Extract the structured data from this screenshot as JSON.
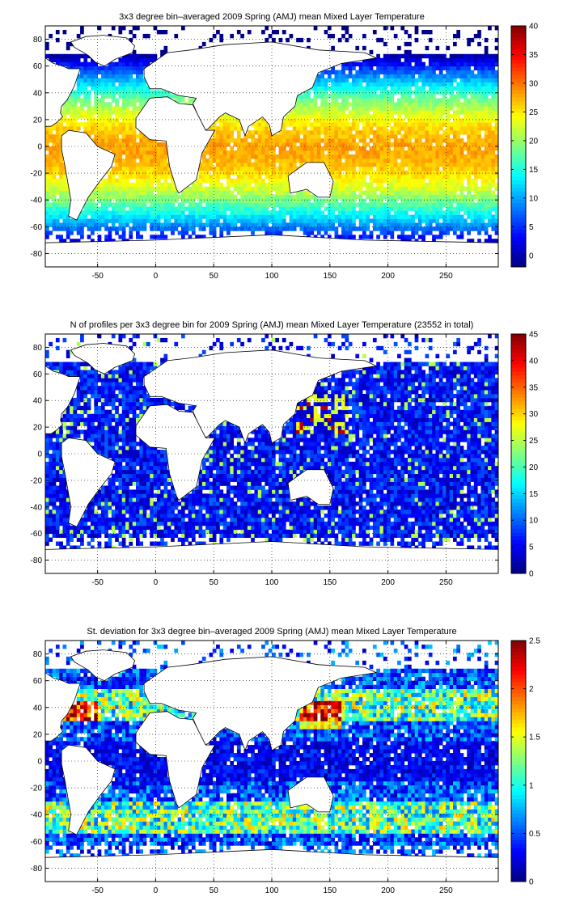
{
  "chart_data": [
    {
      "type": "heatmap",
      "title": "3x3 degree bin–averaged 2009 Spring (AMJ) mean Mixed Layer Temperature",
      "xlim": [
        -95,
        295
      ],
      "ylim": [
        -90,
        90
      ],
      "xticks": [
        -50,
        0,
        50,
        100,
        150,
        200,
        250
      ],
      "yticks": [
        -80,
        -60,
        -40,
        -20,
        0,
        20,
        40,
        60,
        80
      ],
      "clim": [
        -2,
        40
      ],
      "colorbar_ticks": [
        0,
        5,
        10,
        15,
        20,
        25,
        30,
        35,
        40
      ],
      "colormap": "jet",
      "grid": true,
      "field": "temperature",
      "bin_size_deg": 3
    },
    {
      "type": "heatmap",
      "title": "N of profiles per 3x3 degree bin for 2009 Spring (AMJ) mean Mixed Layer Temperature  (23552 in total)",
      "xlim": [
        -95,
        295
      ],
      "ylim": [
        -90,
        90
      ],
      "xticks": [
        -50,
        0,
        50,
        100,
        150,
        200,
        250
      ],
      "yticks": [
        -80,
        -60,
        -40,
        -20,
        0,
        20,
        40,
        60,
        80
      ],
      "clim": [
        0,
        45
      ],
      "colorbar_ticks": [
        0,
        5,
        10,
        15,
        20,
        25,
        30,
        35,
        40,
        45
      ],
      "colormap": "jet",
      "grid": true,
      "field": "count",
      "bin_size_deg": 3
    },
    {
      "type": "heatmap",
      "title": "St. deviation for 3x3 degree bin–averaged 2009 Spring (AMJ) mean Mixed Layer Temperature",
      "xlim": [
        -95,
        295
      ],
      "ylim": [
        -90,
        90
      ],
      "xticks": [
        -50,
        0,
        50,
        100,
        150,
        200,
        250
      ],
      "yticks": [
        -80,
        -60,
        -40,
        -20,
        0,
        20,
        40,
        60,
        80
      ],
      "clim": [
        0,
        2.5
      ],
      "colorbar_ticks": [
        0,
        0.5,
        1,
        1.5,
        2,
        2.5
      ],
      "colormap": "jet",
      "grid": true,
      "field": "stddev",
      "bin_size_deg": 3
    }
  ],
  "landmasks": [
    {
      "name": "greenland",
      "lons": [
        -73,
        -60,
        -45,
        -25,
        -18,
        -20,
        -35,
        -44,
        -52,
        -58,
        -70,
        -73
      ],
      "lats": [
        78,
        82,
        83,
        81,
        75,
        70,
        65,
        60,
        63,
        68,
        74,
        78
      ]
    },
    {
      "name": "north-america",
      "lons": [
        -95,
        -88,
        -80,
        -75,
        -65,
        -70,
        -76,
        -81,
        -82,
        -80,
        -85,
        -90,
        -95
      ],
      "lats": [
        66,
        62,
        60,
        58,
        58,
        45,
        35,
        30,
        25,
        22,
        18,
        15,
        15
      ]
    },
    {
      "name": "south-america",
      "lons": [
        -81,
        -75,
        -60,
        -50,
        -35,
        -38,
        -48,
        -58,
        -68,
        -75,
        -73,
        -78,
        -81
      ],
      "lats": [
        8,
        12,
        10,
        0,
        -6,
        -15,
        -26,
        -38,
        -55,
        -52,
        -40,
        -15,
        -2
      ]
    },
    {
      "name": "europe-asia",
      "lons": [
        -10,
        10,
        30,
        60,
        100,
        140,
        180,
        190,
        160,
        140,
        135,
        122,
        120,
        110,
        108,
        100,
        98,
        92,
        80,
        77,
        72,
        60,
        55,
        45,
        42,
        32,
        35,
        20,
        5,
        -5,
        -10
      ],
      "lats": [
        58,
        70,
        72,
        76,
        78,
        72,
        70,
        66,
        62,
        55,
        44,
        38,
        30,
        22,
        12,
        8,
        16,
        22,
        15,
        8,
        20,
        25,
        22,
        13,
        12,
        32,
        36,
        38,
        43,
        43,
        52
      ]
    },
    {
      "name": "africa",
      "lons": [
        -17,
        -5,
        10,
        20,
        32,
        43,
        51,
        40,
        35,
        20,
        18,
        12,
        9,
        -5,
        -17
      ],
      "lats": [
        21,
        36,
        37,
        32,
        31,
        12,
        12,
        -5,
        -25,
        -35,
        -32,
        -15,
        4,
        5,
        14
      ]
    },
    {
      "name": "australia",
      "lons": [
        114,
        130,
        137,
        145,
        153,
        150,
        140,
        130,
        116,
        114
      ],
      "lats": [
        -22,
        -12,
        -12,
        -12,
        -26,
        -38,
        -38,
        -32,
        -35,
        -22
      ]
    },
    {
      "name": "antarctica",
      "lons": [
        -95,
        0,
        100,
        180,
        295,
        295,
        -95
      ],
      "lats": [
        -72,
        -70,
        -66,
        -70,
        -72,
        -90,
        -90
      ]
    }
  ]
}
